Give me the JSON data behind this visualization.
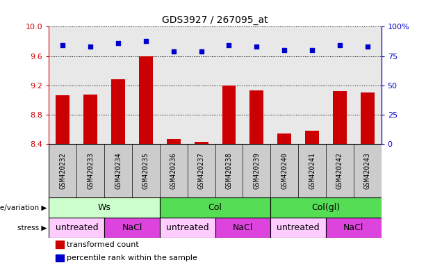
{
  "title": "GDS3927 / 267095_at",
  "samples": [
    "GSM420232",
    "GSM420233",
    "GSM420234",
    "GSM420235",
    "GSM420236",
    "GSM420237",
    "GSM420238",
    "GSM420239",
    "GSM420240",
    "GSM420241",
    "GSM420242",
    "GSM420243"
  ],
  "bar_values": [
    9.07,
    9.08,
    9.28,
    9.6,
    8.47,
    8.43,
    9.2,
    9.13,
    8.55,
    8.58,
    9.12,
    9.1
  ],
  "percentile_values": [
    84,
    83,
    86,
    88,
    79,
    79,
    84,
    83,
    80,
    80,
    84,
    83
  ],
  "ylim_left": [
    8.4,
    10.0
  ],
  "ylim_right": [
    0,
    100
  ],
  "yticks_left": [
    8.4,
    8.8,
    9.2,
    9.6,
    10.0
  ],
  "yticks_right": [
    0,
    25,
    50,
    75,
    100
  ],
  "bar_color": "#cc0000",
  "dot_color": "#0000cc",
  "genotype_groups": [
    {
      "label": "Ws",
      "start": 0,
      "end": 4,
      "color": "#ccffcc"
    },
    {
      "label": "Col",
      "start": 4,
      "end": 8,
      "color": "#55dd55"
    },
    {
      "label": "Col(gl)",
      "start": 8,
      "end": 12,
      "color": "#55dd55"
    }
  ],
  "stress_groups": [
    {
      "label": "untreated",
      "start": 0,
      "end": 2,
      "color": "#ffccff"
    },
    {
      "label": "NaCl",
      "start": 2,
      "end": 4,
      "color": "#dd44dd"
    },
    {
      "label": "untreated",
      "start": 4,
      "end": 6,
      "color": "#ffccff"
    },
    {
      "label": "NaCl",
      "start": 6,
      "end": 8,
      "color": "#dd44dd"
    },
    {
      "label": "untreated",
      "start": 8,
      "end": 10,
      "color": "#ffccff"
    },
    {
      "label": "NaCl",
      "start": 10,
      "end": 12,
      "color": "#dd44dd"
    }
  ],
  "left_axis_color": "#cc0000",
  "right_axis_color": "#0000cc",
  "sample_box_color": "#cccccc",
  "plot_bg_color": "#e8e8e8"
}
